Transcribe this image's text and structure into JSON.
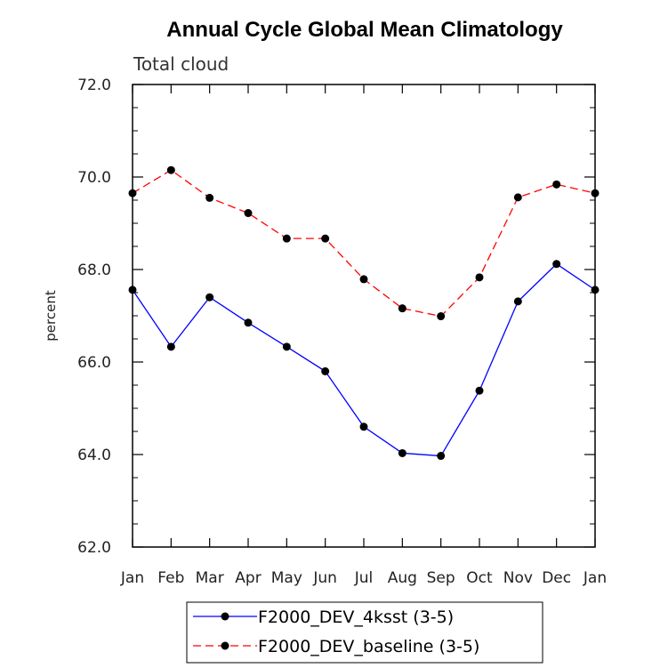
{
  "chart_data": {
    "type": "line",
    "title": "Annual Cycle Global Mean Climatology",
    "subtitle": "Total cloud",
    "xlabel": "",
    "ylabel": "percent",
    "categories": [
      "Jan",
      "Feb",
      "Mar",
      "Apr",
      "May",
      "Jun",
      "Jul",
      "Aug",
      "Sep",
      "Oct",
      "Nov",
      "Dec",
      "Jan"
    ],
    "yticks": [
      "62.0",
      "64.0",
      "66.0",
      "68.0",
      "70.0",
      "72.0"
    ],
    "ylim": [
      62.0,
      72.0
    ],
    "grid": false,
    "legend_position": "bottom",
    "series": [
      {
        "name": "F2000_DEV_4ksst (3-5)",
        "color": "#0000ff",
        "dash": "solid",
        "marker": "filled-circle",
        "values": [
          67.56,
          66.33,
          67.4,
          66.85,
          66.33,
          65.8,
          64.6,
          64.03,
          63.97,
          65.38,
          67.31,
          68.12,
          67.56
        ]
      },
      {
        "name": "F2000_DEV_baseline (3-5)",
        "color": "#ff0000",
        "dash": "dashed",
        "marker": "filled-circle",
        "values": [
          69.65,
          70.15,
          69.55,
          69.22,
          68.67,
          68.67,
          67.79,
          67.16,
          66.99,
          67.83,
          69.56,
          69.84,
          69.65
        ]
      }
    ]
  }
}
